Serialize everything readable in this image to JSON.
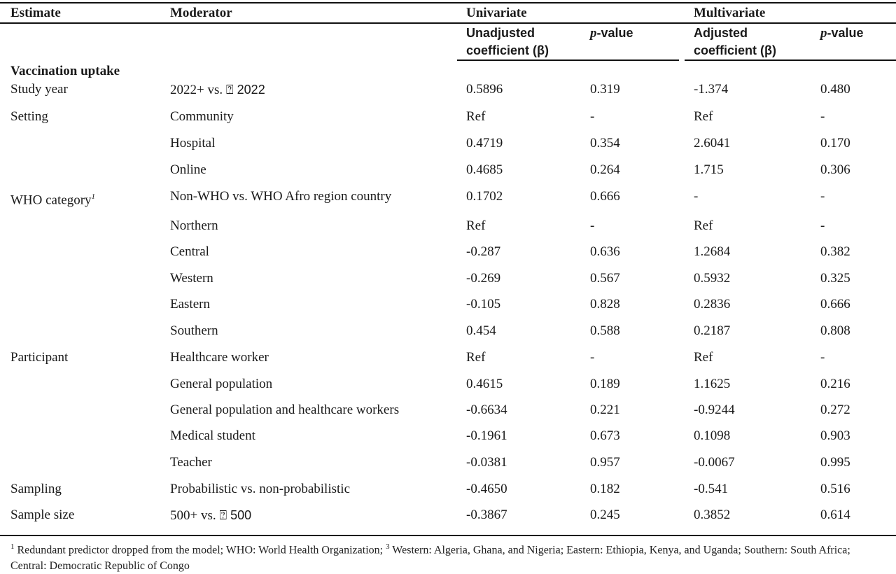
{
  "header": {
    "estimate": "Estimate",
    "moderator": "Moderator",
    "univariate": "Univariate",
    "multivariate": "Multivariate",
    "unadjusted_1": "Unadjusted",
    "unadjusted_2": "coefficient (β)",
    "pvalue_p": "p",
    "pvalue_rest": "-value",
    "adjusted_1": "Adjusted",
    "adjusted_2": "coefficient (β)"
  },
  "section": "Vaccination uptake",
  "rows": [
    {
      "estimate": "Study year",
      "moderator": "2022+ vs. ",
      "moderator_sans": "⍰ 2022",
      "uc": "0.5896",
      "up": "0.319",
      "ac": "-1.374",
      "ap": "0.480"
    },
    {
      "estimate": "Setting",
      "moderator": "Community",
      "uc": "Ref",
      "up": "-",
      "ac": "Ref",
      "ap": "-"
    },
    {
      "estimate": "",
      "moderator": "Hospital",
      "uc": "0.4719",
      "up": "0.354",
      "ac": "2.6041",
      "ap": "0.170"
    },
    {
      "estimate": "",
      "moderator": "Online",
      "uc": "0.4685",
      "up": "0.264",
      "ac": "1.715",
      "ap": "0.306"
    },
    {
      "estimate": "WHO category",
      "estimate_sup": "1",
      "moderator": "Non-WHO vs. WHO Afro region country",
      "uc": "0.1702",
      "up": "0.666",
      "ac": "-",
      "ap": "-"
    },
    {
      "estimate": "",
      "moderator": "Northern",
      "uc": "Ref",
      "up": "-",
      "ac": "Ref",
      "ap": "-"
    },
    {
      "estimate": "",
      "moderator": "Central",
      "uc": "-0.287",
      "up": "0.636",
      "ac": "1.2684",
      "ap": "0.382"
    },
    {
      "estimate": "",
      "moderator": "Western",
      "uc": "-0.269",
      "up": "0.567",
      "ac": "0.5932",
      "ap": "0.325"
    },
    {
      "estimate": "",
      "moderator": "Eastern",
      "uc": "-0.105",
      "up": "0.828",
      "ac": "0.2836",
      "ap": "0.666"
    },
    {
      "estimate": "",
      "moderator": "Southern",
      "uc": "0.454",
      "up": "0.588",
      "ac": "0.2187",
      "ap": "0.808"
    },
    {
      "estimate": "Participant",
      "moderator": "Healthcare worker",
      "uc": "Ref",
      "up": "-",
      "ac": "Ref",
      "ap": "-"
    },
    {
      "estimate": "",
      "moderator": "General population",
      "uc": "0.4615",
      "up": "0.189",
      "ac": "1.1625",
      "ap": "0.216"
    },
    {
      "estimate": "",
      "moderator": "General population and healthcare workers",
      "uc": "-0.6634",
      "up": "0.221",
      "ac": "-0.9244",
      "ap": "0.272"
    },
    {
      "estimate": "",
      "moderator": "Medical student",
      "uc": "-0.1961",
      "up": "0.673",
      "ac": "0.1098",
      "ap": "0.903"
    },
    {
      "estimate": "",
      "moderator": "Teacher",
      "uc": "-0.0381",
      "up": "0.957",
      "ac": "-0.0067",
      "ap": "0.995"
    },
    {
      "estimate": "Sampling",
      "moderator": "Probabilistic vs. non-probabilistic",
      "uc": "-0.4650",
      "up": "0.182",
      "ac": "-0.541",
      "ap": "0.516"
    },
    {
      "estimate": "Sample size",
      "moderator": "500+ vs. ",
      "moderator_sans": "⍰ 500",
      "uc": "-0.3867",
      "up": "0.245",
      "ac": "0.3852",
      "ap": "0.614"
    }
  ],
  "footnote": {
    "sup1": "1",
    "text1": " Redundant predictor dropped from the model; WHO: World Health Organization; ",
    "sup3": "3",
    "text2": " Western: Algeria, Ghana, and Nigeria; Eastern: Ethiopia, Kenya, and Uganda; Southern: South Africa; Central: Democratic Republic of Congo"
  }
}
